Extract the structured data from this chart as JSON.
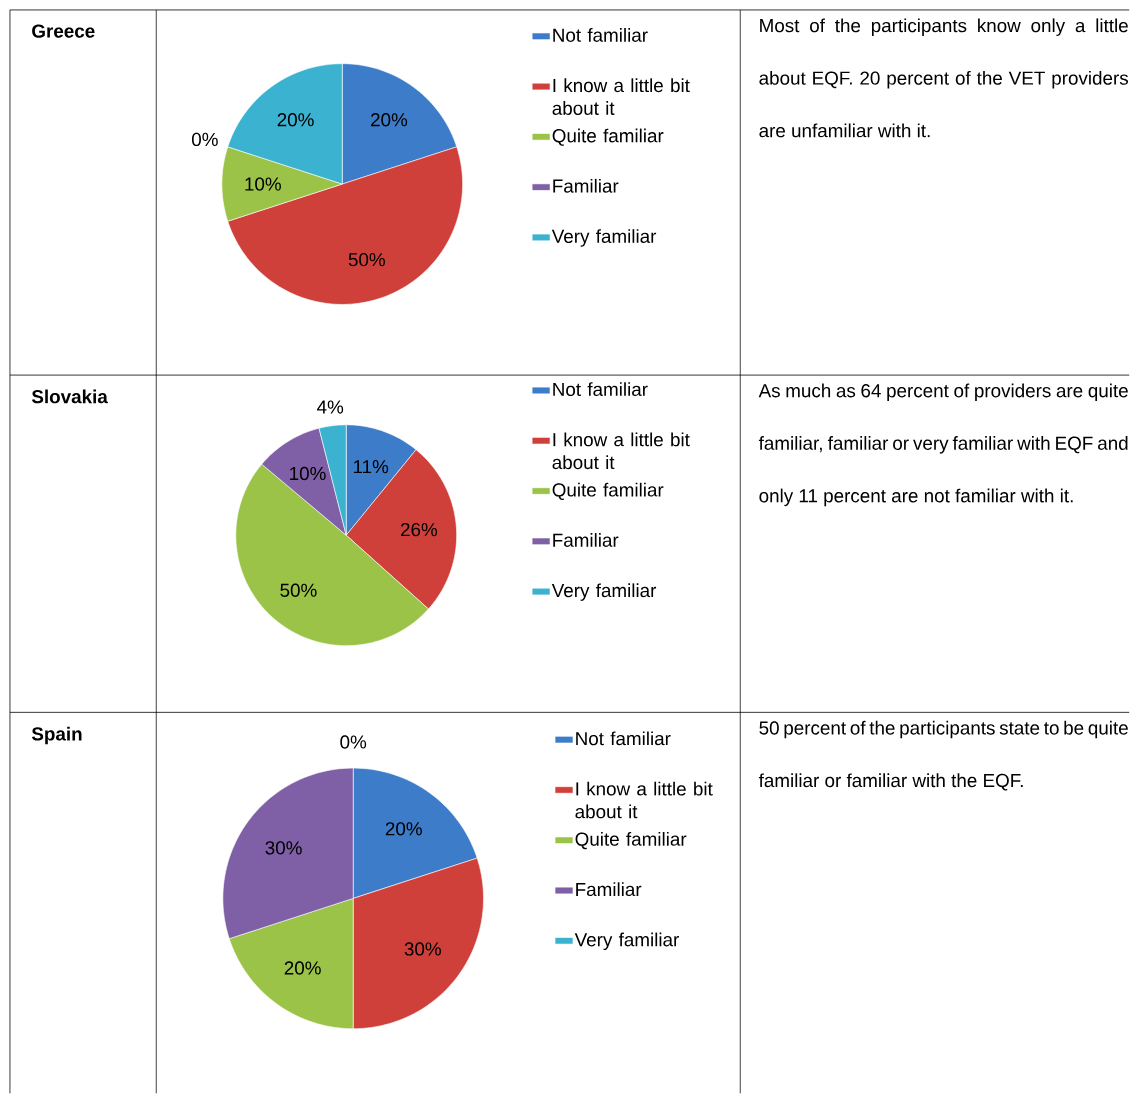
{
  "chart_data": [
    {
      "type": "pie",
      "title": "Greece",
      "categories": [
        "Not familiar",
        "I know a little bit about it",
        "Quite familiar",
        "Familiar",
        "Very familiar"
      ],
      "values": [
        20,
        50,
        10,
        0,
        20
      ],
      "value_labels": [
        "20%",
        "50%",
        "10%",
        "0%",
        "20%"
      ],
      "colors": [
        "#3d7cc9",
        "#d0403b",
        "#9bc348",
        "#7f5fa6",
        "#3bb3d0"
      ],
      "legend": "right",
      "annotations": [
        "Most of the participants know only a little about EQF. 20 percent of the VET providers are unfamiliar with it."
      ]
    },
    {
      "type": "pie",
      "title": "Slovakia",
      "categories": [
        "Not familiar",
        "I know a little bit about it",
        "Quite familiar",
        "Familiar",
        "Very familiar"
      ],
      "values": [
        11,
        26,
        50,
        10,
        4
      ],
      "value_labels": [
        "11%",
        "26%",
        "50%",
        "10%",
        "4%"
      ],
      "colors": [
        "#3d7cc9",
        "#d0403b",
        "#9bc348",
        "#7f5fa6",
        "#3bb3d0"
      ],
      "legend": "right",
      "annotations": [
        "As much as 64 percent of providers are quite familiar, familiar or very familiar with EQF and only 11 percent are not familiar with it."
      ]
    },
    {
      "type": "pie",
      "title": "Spain",
      "categories": [
        "Not familiar",
        "I know a little bit about it",
        "Quite familiar",
        "Familiar",
        "Very familiar"
      ],
      "values": [
        20,
        30,
        20,
        30,
        0
      ],
      "value_labels": [
        "20%",
        "30%",
        "20%",
        "30%",
        "0%"
      ],
      "colors": [
        "#3d7cc9",
        "#d0403b",
        "#9bc348",
        "#7f5fa6",
        "#3bb3d0"
      ],
      "legend": "right",
      "annotations": [
        "50 percent of the participants state to be quite familiar or familiar with the EQF."
      ]
    }
  ]
}
